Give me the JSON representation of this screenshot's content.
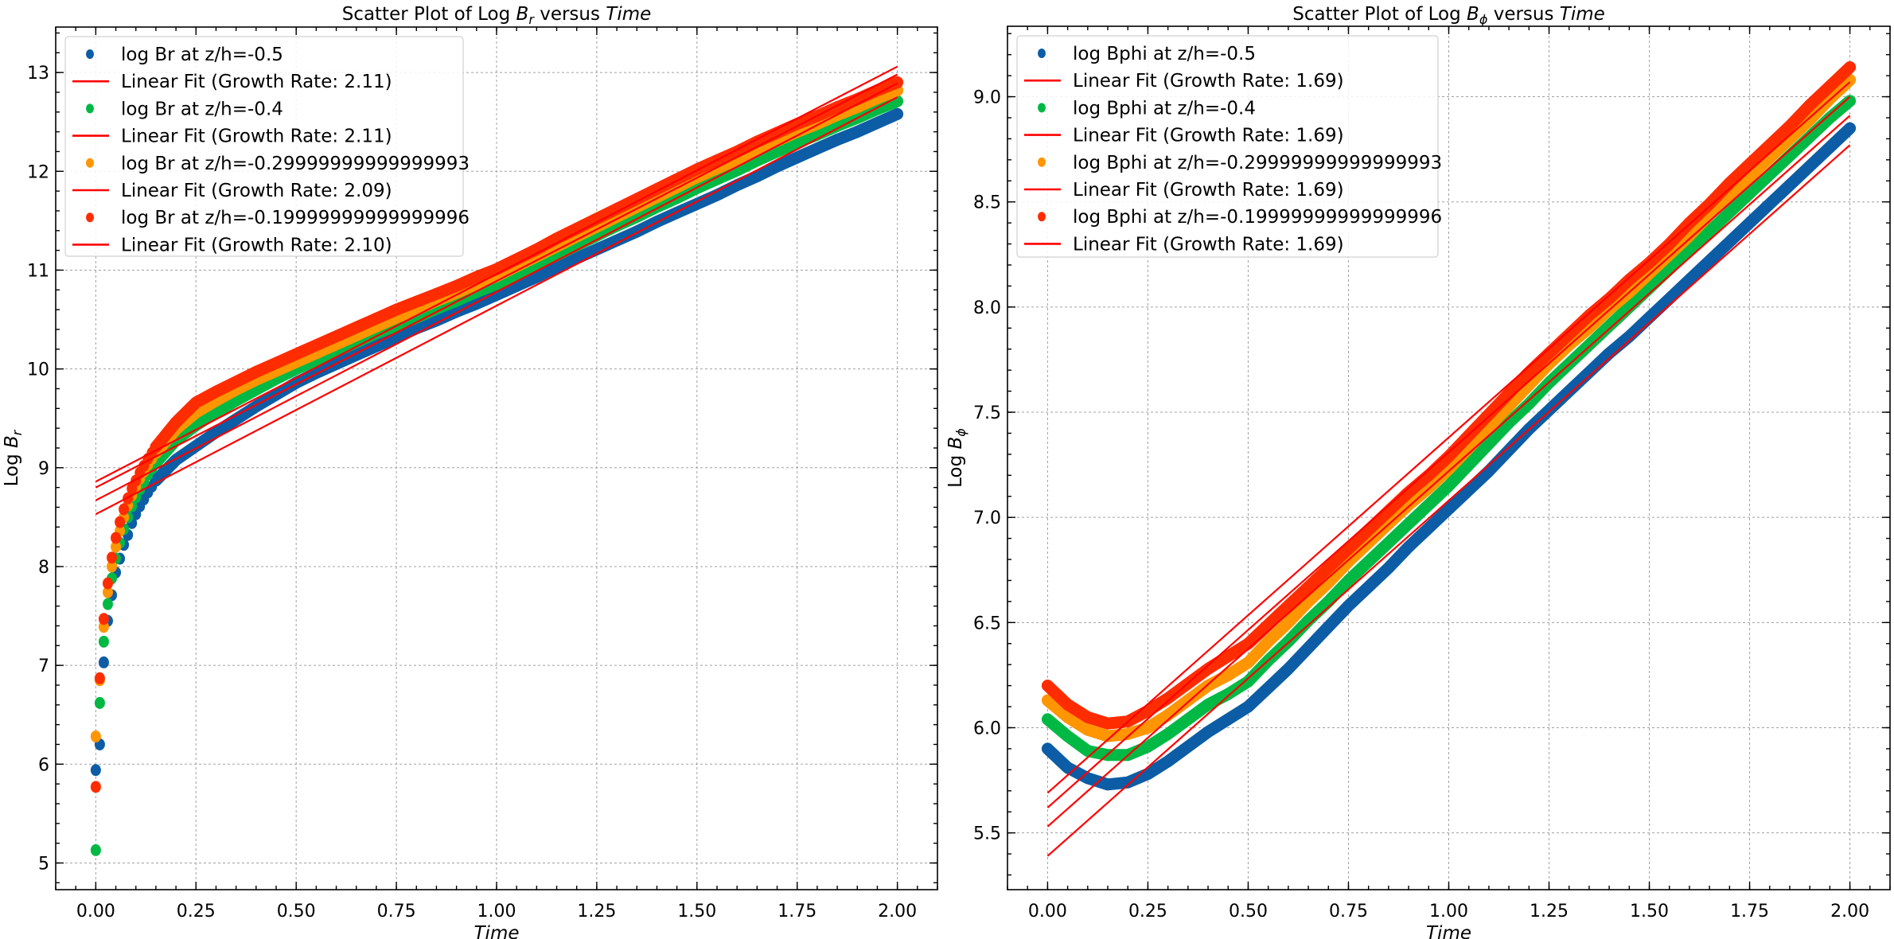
{
  "chart_data": [
    {
      "type": "scatter",
      "title": "Scatter Plot of Log B_r versus Time",
      "title_parts": {
        "prefix": "Scatter Plot of Log ",
        "symbol": "B",
        "subscript": "r",
        "middle": " versus ",
        "italic": "Time"
      },
      "xlabel": "Time",
      "ylabel": "Log B_r",
      "ylabel_parts": {
        "prefix": "Log ",
        "symbol": "B",
        "subscript": "r"
      },
      "xlim": [
        -0.1,
        2.1
      ],
      "ylim": [
        4.73,
        13.46
      ],
      "xticks": [
        0.0,
        0.25,
        0.5,
        0.75,
        1.0,
        1.25,
        1.5,
        1.75,
        2.0
      ],
      "xtick_labels": [
        "0.00",
        "0.25",
        "0.50",
        "0.75",
        "1.00",
        "1.25",
        "1.50",
        "1.75",
        "2.00"
      ],
      "yticks": [
        5,
        6,
        7,
        8,
        9,
        10,
        11,
        12,
        13
      ],
      "ytick_labels": [
        "5",
        "6",
        "7",
        "8",
        "9",
        "10",
        "11",
        "12",
        "13"
      ],
      "x_minor_step": 0.05,
      "y_minor_step": 0.2,
      "grid": true,
      "legend_position": "upper-left",
      "x": [
        0,
        0.01,
        0.02,
        0.03,
        0.04,
        0.05,
        0.06,
        0.07,
        0.08,
        0.09,
        0.1,
        0.11,
        0.12,
        0.13,
        0.14,
        0.15,
        0.2,
        0.25,
        0.3,
        0.35,
        0.4,
        0.45,
        0.5,
        0.55,
        0.6,
        0.65,
        0.7,
        0.75,
        0.8,
        0.85,
        0.9,
        0.95,
        1.0,
        1.05,
        1.1,
        1.15,
        1.2,
        1.25,
        1.3,
        1.35,
        1.4,
        1.45,
        1.5,
        1.55,
        1.6,
        1.65,
        1.7,
        1.75,
        1.8,
        1.85,
        1.9,
        1.95,
        2.0
      ],
      "series": [
        {
          "name": "log Br at z/h=-0.5",
          "color": "#0C5DA5",
          "values": [
            5.94,
            6.2,
            7.03,
            7.45,
            7.71,
            7.94,
            8.08,
            8.22,
            8.32,
            8.44,
            8.53,
            8.61,
            8.68,
            8.75,
            8.81,
            8.87,
            9.08,
            9.22,
            9.36,
            9.49,
            9.62,
            9.74,
            9.86,
            9.96,
            10.05,
            10.14,
            10.23,
            10.32,
            10.41,
            10.49,
            10.58,
            10.66,
            10.75,
            10.84,
            10.93,
            11.03,
            11.12,
            11.21,
            11.3,
            11.39,
            11.49,
            11.58,
            11.67,
            11.76,
            11.86,
            11.95,
            12.05,
            12.14,
            12.23,
            12.32,
            12.4,
            12.49,
            12.58
          ]
        },
        {
          "name": "log Br at z/h=-0.4",
          "color": "#00B945",
          "values": [
            5.13,
            6.62,
            7.24,
            7.62,
            7.88,
            8.08,
            8.24,
            8.38,
            8.5,
            8.61,
            8.7,
            8.78,
            8.86,
            8.93,
            8.99,
            9.05,
            9.28,
            9.43,
            9.56,
            9.68,
            9.79,
            9.9,
            10.0,
            10.09,
            10.18,
            10.27,
            10.36,
            10.44,
            10.52,
            10.61,
            10.69,
            10.78,
            10.86,
            10.96,
            11.06,
            11.15,
            11.25,
            11.35,
            11.45,
            11.54,
            11.64,
            11.73,
            11.83,
            11.92,
            12.01,
            12.11,
            12.2,
            12.29,
            12.37,
            12.46,
            12.54,
            12.63,
            12.71
          ]
        },
        {
          "name": "log Br at z/h=-0.29999999999999993",
          "color": "#FF9500",
          "values": [
            6.28,
            6.85,
            7.39,
            7.74,
            8.0,
            8.2,
            8.36,
            8.5,
            8.62,
            8.72,
            8.81,
            8.89,
            8.96,
            9.03,
            9.09,
            9.15,
            9.39,
            9.56,
            9.68,
            9.79,
            9.89,
            9.98,
            10.07,
            10.16,
            10.25,
            10.34,
            10.43,
            10.52,
            10.6,
            10.69,
            10.77,
            10.86,
            10.94,
            11.04,
            11.14,
            11.24,
            11.34,
            11.44,
            11.54,
            11.64,
            11.74,
            11.84,
            11.94,
            12.03,
            12.12,
            12.22,
            12.31,
            12.4,
            12.48,
            12.57,
            12.65,
            12.74,
            12.82
          ]
        },
        {
          "name": "log Br at z/h=-0.19999999999999996",
          "color": "#FF2C00",
          "values": [
            5.77,
            6.87,
            7.47,
            7.83,
            8.09,
            8.29,
            8.45,
            8.58,
            8.69,
            8.79,
            8.87,
            8.95,
            9.02,
            9.09,
            9.15,
            9.21,
            9.46,
            9.66,
            9.77,
            9.87,
            9.97,
            10.06,
            10.15,
            10.24,
            10.33,
            10.42,
            10.51,
            10.6,
            10.68,
            10.76,
            10.84,
            10.93,
            11.01,
            11.11,
            11.21,
            11.32,
            11.42,
            11.52,
            11.62,
            11.72,
            11.82,
            11.92,
            12.02,
            12.11,
            12.2,
            12.3,
            12.39,
            12.48,
            12.56,
            12.65,
            12.73,
            12.82,
            12.9
          ]
        }
      ],
      "fits": [
        {
          "name": "Linear Fit (Growth Rate: 2.11)",
          "color": "#FF0000",
          "slope": 2.11,
          "intercept": 8.53,
          "x_range": [
            0,
            2
          ]
        },
        {
          "name": "Linear Fit (Growth Rate: 2.11)",
          "color": "#FF0000",
          "slope": 2.11,
          "intercept": 8.67,
          "x_range": [
            0,
            2
          ]
        },
        {
          "name": "Linear Fit (Growth Rate: 2.09)",
          "color": "#FF0000",
          "slope": 2.09,
          "intercept": 8.8,
          "x_range": [
            0,
            2
          ]
        },
        {
          "name": "Linear Fit (Growth Rate: 2.10)",
          "color": "#FF0000",
          "slope": 2.1,
          "intercept": 8.86,
          "x_range": [
            0,
            2
          ]
        }
      ],
      "legend": [
        {
          "kind": "marker",
          "label": "log Br at z/h=-0.5",
          "color": "#0C5DA5"
        },
        {
          "kind": "line",
          "label": "Linear Fit (Growth Rate: 2.11)",
          "color": "#FF0000"
        },
        {
          "kind": "marker",
          "label": "log Br at z/h=-0.4",
          "color": "#00B945"
        },
        {
          "kind": "line",
          "label": "Linear Fit (Growth Rate: 2.11)",
          "color": "#FF0000"
        },
        {
          "kind": "marker",
          "label": "log Br at z/h=-0.29999999999999993",
          "color": "#FF9500"
        },
        {
          "kind": "line",
          "label": "Linear Fit (Growth Rate: 2.09)",
          "color": "#FF0000"
        },
        {
          "kind": "marker",
          "label": "log Br at z/h=-0.19999999999999996",
          "color": "#FF2C00"
        },
        {
          "kind": "line",
          "label": "Linear Fit (Growth Rate: 2.10)",
          "color": "#FF0000"
        }
      ]
    },
    {
      "type": "scatter",
      "title": "Scatter Plot of Log B_phi versus Time",
      "title_parts": {
        "prefix": "Scatter Plot of Log ",
        "symbol": "B",
        "subscript": "ϕ",
        "middle": " versus ",
        "italic": "Time"
      },
      "xlabel": "Time",
      "ylabel": "Log B_phi",
      "ylabel_parts": {
        "prefix": "Log ",
        "symbol": "B",
        "subscript": "ϕ"
      },
      "xlim": [
        -0.1,
        2.1
      ],
      "ylim": [
        5.23,
        9.335
      ],
      "xticks": [
        0.0,
        0.25,
        0.5,
        0.75,
        1.0,
        1.25,
        1.5,
        1.75,
        2.0
      ],
      "xtick_labels": [
        "0.00",
        "0.25",
        "0.50",
        "0.75",
        "1.00",
        "1.25",
        "1.50",
        "1.75",
        "2.00"
      ],
      "yticks": [
        5.5,
        6.0,
        6.5,
        7.0,
        7.5,
        8.0,
        8.5,
        9.0
      ],
      "ytick_labels": [
        "5.5",
        "6.0",
        "6.5",
        "7.0",
        "7.5",
        "8.0",
        "8.5",
        "9.0"
      ],
      "x_minor_step": 0.05,
      "y_minor_step": 0.1,
      "grid": true,
      "legend_position": "upper-left",
      "x": [
        0,
        0.05,
        0.1,
        0.15,
        0.2,
        0.25,
        0.3,
        0.35,
        0.4,
        0.45,
        0.5,
        0.55,
        0.6,
        0.65,
        0.7,
        0.75,
        0.8,
        0.85,
        0.9,
        0.95,
        1.0,
        1.05,
        1.1,
        1.15,
        1.2,
        1.25,
        1.3,
        1.35,
        1.4,
        1.45,
        1.5,
        1.55,
        1.6,
        1.65,
        1.7,
        1.75,
        1.8,
        1.85,
        1.9,
        1.95,
        2.0
      ],
      "series": [
        {
          "name": "log Bphi at z/h=-0.5",
          "color": "#0C5DA5",
          "values": [
            5.9,
            5.81,
            5.76,
            5.73,
            5.74,
            5.78,
            5.84,
            5.91,
            5.98,
            6.04,
            6.1,
            6.19,
            6.28,
            6.38,
            6.48,
            6.58,
            6.67,
            6.76,
            6.86,
            6.95,
            7.04,
            7.13,
            7.22,
            7.32,
            7.42,
            7.51,
            7.6,
            7.69,
            7.78,
            7.86,
            7.95,
            8.04,
            8.13,
            8.22,
            8.31,
            8.4,
            8.49,
            8.58,
            8.67,
            8.76,
            8.85
          ]
        },
        {
          "name": "log Bphi at z/h=-0.4",
          "color": "#00B945",
          "values": [
            6.04,
            5.96,
            5.89,
            5.87,
            5.87,
            5.91,
            5.97,
            6.04,
            6.11,
            6.16,
            6.22,
            6.32,
            6.41,
            6.51,
            6.6,
            6.7,
            6.79,
            6.88,
            6.97,
            7.06,
            7.15,
            7.25,
            7.35,
            7.45,
            7.54,
            7.64,
            7.73,
            7.82,
            7.91,
            8.0,
            8.09,
            8.18,
            8.27,
            8.36,
            8.45,
            8.54,
            8.63,
            8.72,
            8.81,
            8.9,
            8.98
          ]
        },
        {
          "name": "log Bphi at z/h=-0.29999999999999993",
          "color": "#FF9500",
          "values": [
            6.13,
            6.05,
            5.99,
            5.96,
            5.97,
            6.0,
            6.06,
            6.13,
            6.2,
            6.25,
            6.31,
            6.41,
            6.5,
            6.6,
            6.69,
            6.79,
            6.88,
            6.97,
            7.06,
            7.14,
            7.23,
            7.33,
            7.43,
            7.53,
            7.63,
            7.73,
            7.82,
            7.9,
            7.99,
            8.07,
            8.16,
            8.25,
            8.34,
            8.44,
            8.53,
            8.62,
            8.71,
            8.8,
            8.89,
            8.99,
            9.08
          ]
        },
        {
          "name": "log Bphi at z/h=-0.19999999999999996",
          "color": "#FF2C00",
          "values": [
            6.2,
            6.11,
            6.05,
            6.02,
            6.03,
            6.08,
            6.14,
            6.21,
            6.28,
            6.34,
            6.4,
            6.49,
            6.58,
            6.67,
            6.76,
            6.85,
            6.94,
            7.03,
            7.12,
            7.2,
            7.29,
            7.39,
            7.49,
            7.59,
            7.69,
            7.78,
            7.87,
            7.96,
            8.04,
            8.13,
            8.21,
            8.3,
            8.4,
            8.49,
            8.59,
            8.68,
            8.77,
            8.86,
            8.96,
            9.05,
            9.14
          ]
        }
      ],
      "fits": [
        {
          "name": "Linear Fit (Growth Rate: 1.69)",
          "color": "#FF0000",
          "slope": 1.69,
          "intercept": 5.39,
          "x_range": [
            0,
            2
          ]
        },
        {
          "name": "Linear Fit (Growth Rate: 1.69)",
          "color": "#FF0000",
          "slope": 1.69,
          "intercept": 5.53,
          "x_range": [
            0,
            2
          ]
        },
        {
          "name": "Linear Fit (Growth Rate: 1.69)",
          "color": "#FF0000",
          "slope": 1.69,
          "intercept": 5.62,
          "x_range": [
            0,
            2
          ]
        },
        {
          "name": "Linear Fit (Growth Rate: 1.69)",
          "color": "#FF0000",
          "slope": 1.69,
          "intercept": 5.69,
          "x_range": [
            0,
            2
          ]
        }
      ],
      "legend": [
        {
          "kind": "marker",
          "label": "log Bphi at z/h=-0.5",
          "color": "#0C5DA5"
        },
        {
          "kind": "line",
          "label": "Linear Fit (Growth Rate: 1.69)",
          "color": "#FF0000"
        },
        {
          "kind": "marker",
          "label": "log Bphi at z/h=-0.4",
          "color": "#00B945"
        },
        {
          "kind": "line",
          "label": "Linear Fit (Growth Rate: 1.69)",
          "color": "#FF0000"
        },
        {
          "kind": "marker",
          "label": "log Bphi at z/h=-0.29999999999999993",
          "color": "#FF9500"
        },
        {
          "kind": "line",
          "label": "Linear Fit (Growth Rate: 1.69)",
          "color": "#FF0000"
        },
        {
          "kind": "marker",
          "label": "log Bphi at z/h=-0.19999999999999996",
          "color": "#FF2C00"
        },
        {
          "kind": "line",
          "label": "Linear Fit (Growth Rate: 1.69)",
          "color": "#FF0000"
        }
      ]
    }
  ]
}
